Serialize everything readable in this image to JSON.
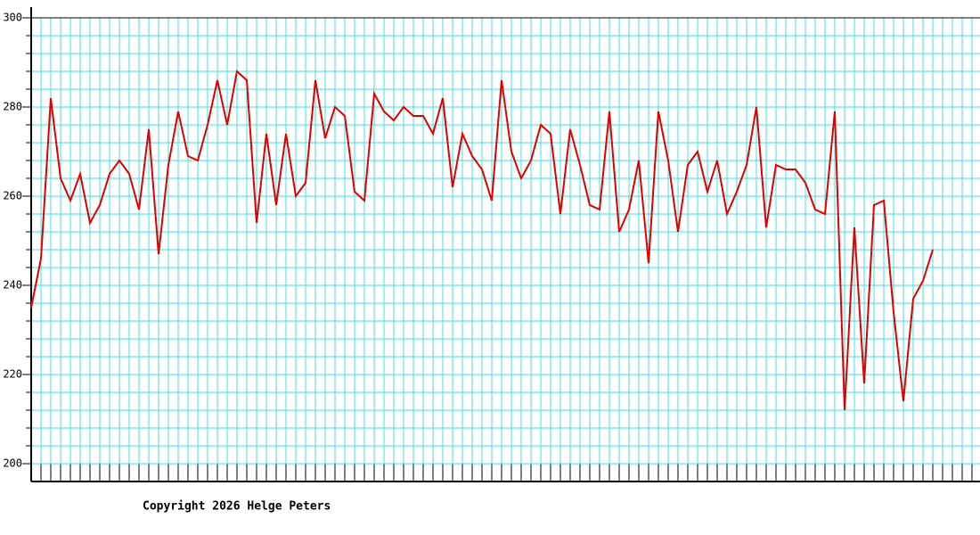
{
  "chart_data": {
    "type": "line",
    "values": [
      235,
      246,
      282,
      264,
      259,
      265,
      254,
      258,
      265,
      268,
      265,
      257,
      275,
      247,
      267,
      279,
      269,
      268,
      276,
      286,
      276,
      288,
      286,
      254,
      274,
      258,
      274,
      260,
      263,
      286,
      273,
      280,
      278,
      261,
      259,
      283,
      279,
      277,
      280,
      278,
      278,
      274,
      282,
      262,
      274,
      269,
      266,
      259,
      286,
      270,
      264,
      268,
      276,
      274,
      256,
      275,
      267,
      258,
      257,
      279,
      252,
      257,
      268,
      245,
      279,
      268,
      252,
      267,
      270,
      261,
      268,
      256,
      261,
      267,
      280,
      253,
      267,
      266,
      266,
      263,
      257,
      256,
      279,
      212,
      253,
      218,
      258,
      259,
      234,
      214,
      237,
      241,
      248
    ],
    "color": "#e00000",
    "ylim": [
      196,
      300
    ],
    "yticks": [
      200,
      220,
      240,
      260,
      280,
      300
    ],
    "minor_yticks": [
      200,
      204,
      208,
      212,
      216,
      220,
      224,
      228,
      232,
      236,
      240,
      244,
      248,
      252,
      256,
      260,
      264,
      268,
      272,
      276,
      280,
      284,
      288,
      292,
      296,
      300
    ],
    "grid": true,
    "grid_color": "#40e0e0",
    "footer": "Copyright 2026 Helge Peters"
  }
}
